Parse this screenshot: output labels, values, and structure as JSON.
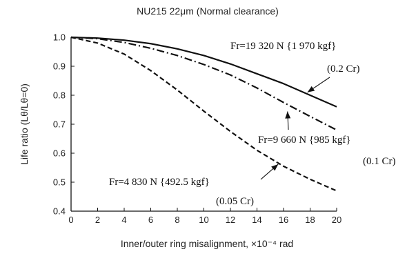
{
  "chart_data": {
    "type": "line",
    "title": "NU215   22μm (Normal clearance)",
    "xlabel": "Inner/outer ring misalignment, ×10⁻⁴ rad",
    "ylabel": "Life ratio (Lθ/Lθ=0)",
    "xlim": [
      0,
      20
    ],
    "ylim": [
      0.4,
      1.0
    ],
    "xticks": [
      0,
      2,
      4,
      6,
      8,
      10,
      12,
      14,
      16,
      18,
      20
    ],
    "yticks": [
      "0.4",
      "0.5",
      "0.6",
      "0.7",
      "0.8",
      "0.9",
      "1.0"
    ],
    "grid": false,
    "series": [
      {
        "style": "solid",
        "x": [
          0,
          2,
          4,
          6,
          8,
          10,
          12,
          14,
          16,
          18,
          20
        ],
        "y": [
          1.0,
          0.997,
          0.99,
          0.978,
          0.96,
          0.937,
          0.908,
          0.874,
          0.84,
          0.8,
          0.76
        ]
      },
      {
        "style": "dashdot",
        "x": [
          0,
          2,
          4,
          6,
          8,
          10,
          12,
          14,
          16,
          18,
          20
        ],
        "y": [
          1.0,
          0.995,
          0.982,
          0.962,
          0.937,
          0.906,
          0.87,
          0.825,
          0.775,
          0.727,
          0.68
        ]
      },
      {
        "style": "dashed",
        "x": [
          0,
          2,
          4,
          6,
          8,
          10,
          12,
          14,
          16,
          18,
          20
        ],
        "y": [
          1.0,
          0.98,
          0.942,
          0.885,
          0.818,
          0.745,
          0.675,
          0.61,
          0.555,
          0.51,
          0.47
        ]
      }
    ],
    "annotations": [
      {
        "line1": "Fr=19 320 N {1 970 kgf}",
        "line2": "(0.2 Cr)"
      },
      {
        "line1": "Fr=9 660 N {985 kgf}",
        "line2": "(0.1 Cr)"
      },
      {
        "line1": "Fr=4 830 N {492.5 kgf}",
        "line2": "(0.05 Cr)"
      }
    ]
  }
}
